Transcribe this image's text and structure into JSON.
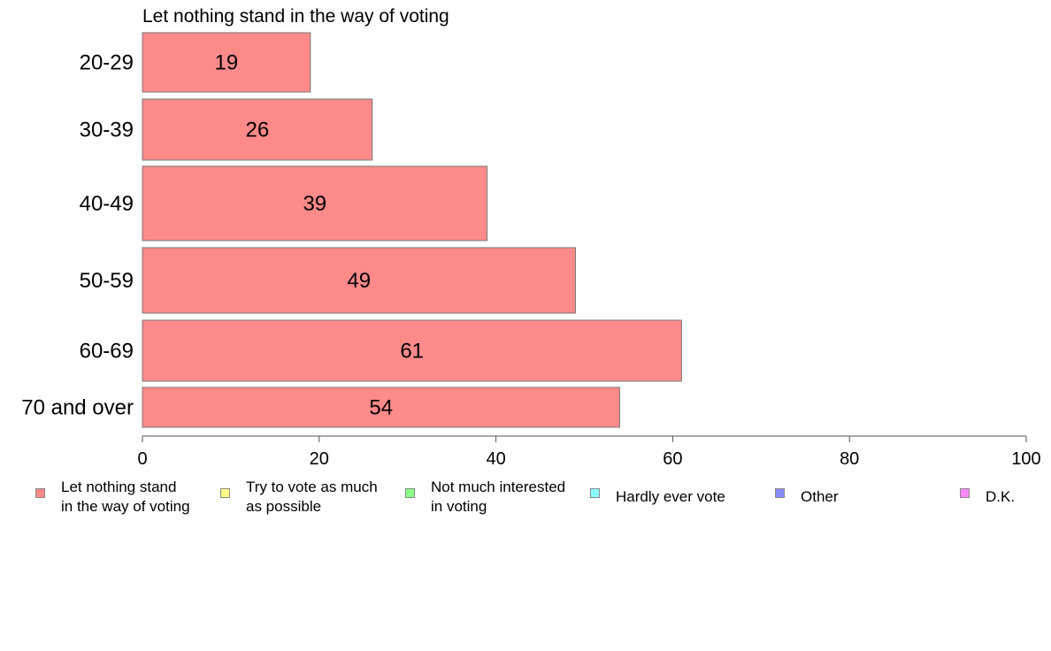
{
  "chart_data": {
    "type": "bar",
    "orientation": "horizontal",
    "title": "Let nothing stand in the way of voting",
    "categories": [
      "20-29",
      "30-39",
      "40-49",
      "50-59",
      "60-69",
      "70 and over"
    ],
    "values": [
      19,
      26,
      39,
      49,
      61,
      54
    ],
    "xlim": [
      0,
      100
    ],
    "xticks": [
      0,
      20,
      40,
      60,
      80,
      100
    ],
    "grid": false,
    "bar_color": "#ff8a8a",
    "legend_position": "bottom",
    "legend": [
      {
        "label": "Let nothing stand\nin the way of voting",
        "color": "#ff8a8a"
      },
      {
        "label": "Try to vote as much\nas possible",
        "color": "#ffff8a"
      },
      {
        "label": "Not much interested\nin voting",
        "color": "#8aff8a"
      },
      {
        "label": "Hardly ever vote",
        "color": "#8affff"
      },
      {
        "label": "Other",
        "color": "#8a8aff"
      },
      {
        "label": "D.K.",
        "color": "#ff8aff"
      }
    ]
  }
}
